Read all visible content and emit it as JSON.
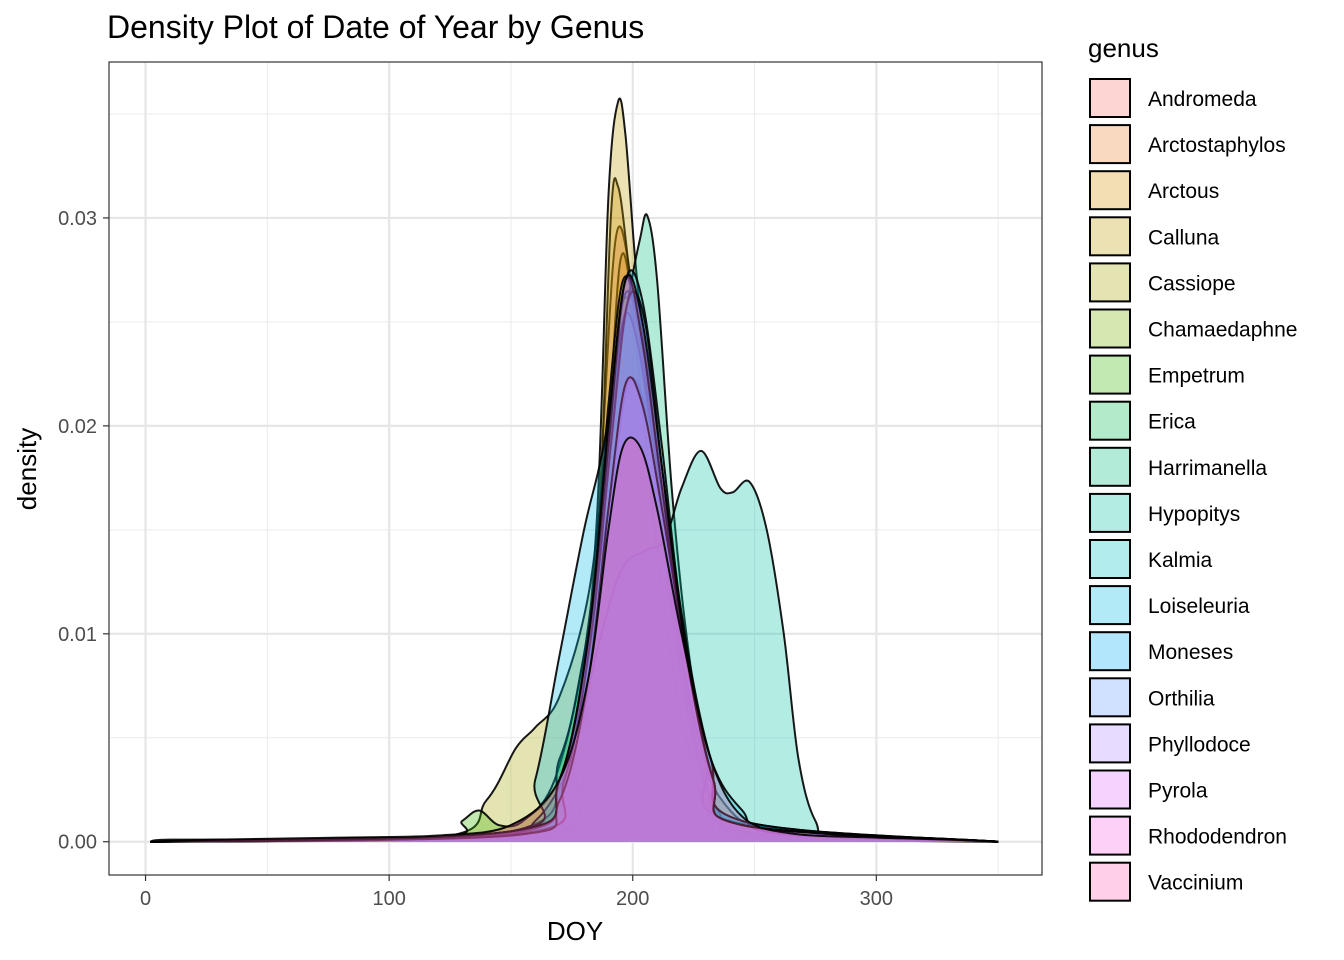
{
  "chart_data": {
    "type": "area",
    "subtype": "density",
    "title": "Density Plot of Date of Year by Genus",
    "xlabel": "DOY",
    "ylabel": "density",
    "xlim": [
      -15,
      368
    ],
    "ylim": [
      -0.0016,
      0.0375
    ],
    "x_ticks": [
      0,
      100,
      200,
      300
    ],
    "y_ticks": [
      0.0,
      0.01,
      0.02,
      0.03
    ],
    "x_tick_labels": [
      "0",
      "100",
      "200",
      "300"
    ],
    "y_tick_labels": [
      "0.00",
      "0.01",
      "0.02",
      "0.03"
    ],
    "grid": true,
    "legend_title": "genus",
    "legend_position": "right",
    "fill_opacity": 0.3,
    "series": [
      {
        "name": "Andromeda",
        "color": "#F8766D",
        "points": [
          [
            2,
            0
          ],
          [
            170,
            0.0003
          ],
          [
            180,
            0.003
          ],
          [
            188,
            0.02
          ],
          [
            193,
            0.029
          ],
          [
            198,
            0.028
          ],
          [
            203,
            0.022
          ],
          [
            210,
            0.014
          ],
          [
            220,
            0.006
          ],
          [
            232,
            0.001
          ],
          [
            245,
            0.0002
          ],
          [
            350,
            0
          ]
        ]
      },
      {
        "name": "Arctostaphylos",
        "color": "#EA8331",
        "points": [
          [
            2,
            0
          ],
          [
            10,
            0.0001
          ],
          [
            60,
            0.0001
          ],
          [
            90,
            0.0002
          ],
          [
            120,
            0.0002
          ],
          [
            150,
            0.0008
          ],
          [
            170,
            0.003
          ],
          [
            182,
            0.009
          ],
          [
            190,
            0.02
          ],
          [
            195,
            0.028
          ],
          [
            200,
            0.026
          ],
          [
            207,
            0.02
          ],
          [
            215,
            0.012
          ],
          [
            225,
            0.005
          ],
          [
            240,
            0.0015
          ],
          [
            260,
            0.0004
          ],
          [
            300,
            0.0002
          ],
          [
            350,
            0
          ]
        ]
      },
      {
        "name": "Arctous",
        "color": "#D89000",
        "points": [
          [
            2,
            0
          ],
          [
            160,
            0.0002
          ],
          [
            178,
            0.004
          ],
          [
            186,
            0.015
          ],
          [
            191,
            0.03
          ],
          [
            194,
            0.0315
          ],
          [
            198,
            0.028
          ],
          [
            203,
            0.022
          ],
          [
            210,
            0.014
          ],
          [
            220,
            0.006
          ],
          [
            235,
            0.0015
          ],
          [
            250,
            0.0003
          ],
          [
            350,
            0
          ]
        ]
      },
      {
        "name": "Calluna",
        "color": "#C09B00",
        "points": [
          [
            2,
            0
          ],
          [
            160,
            0.0003
          ],
          [
            175,
            0.003
          ],
          [
            185,
            0.015
          ],
          [
            190,
            0.031
          ],
          [
            194,
            0.0356
          ],
          [
            197,
            0.034
          ],
          [
            201,
            0.028
          ],
          [
            206,
            0.022
          ],
          [
            212,
            0.016
          ],
          [
            220,
            0.009
          ],
          [
            230,
            0.003
          ],
          [
            245,
            0.0005
          ],
          [
            350,
            0
          ]
        ]
      },
      {
        "name": "Cassiope",
        "color": "#A3A500",
        "points": [
          [
            2,
            0
          ],
          [
            120,
            0.0002
          ],
          [
            140,
            0.002
          ],
          [
            152,
            0.0045
          ],
          [
            160,
            0.0055
          ],
          [
            170,
            0.007
          ],
          [
            182,
            0.012
          ],
          [
            190,
            0.02
          ],
          [
            196,
            0.026
          ],
          [
            202,
            0.024
          ],
          [
            210,
            0.017
          ],
          [
            220,
            0.008
          ],
          [
            232,
            0.002
          ],
          [
            250,
            0.0004
          ],
          [
            350,
            0
          ]
        ]
      },
      {
        "name": "Chamaedaphne",
        "color": "#7CAE00",
        "points": [
          [
            2,
            0
          ],
          [
            150,
            0.0005
          ],
          [
            170,
            0.003
          ],
          [
            182,
            0.01
          ],
          [
            190,
            0.021
          ],
          [
            196,
            0.027
          ],
          [
            202,
            0.025
          ],
          [
            210,
            0.018
          ],
          [
            220,
            0.009
          ],
          [
            232,
            0.003
          ],
          [
            245,
            0.0008
          ],
          [
            350,
            0
          ]
        ]
      },
      {
        "name": "Empetrum",
        "color": "#39B600",
        "points": [
          [
            2,
            0
          ],
          [
            120,
            0.0002
          ],
          [
            130,
            0.001
          ],
          [
            137,
            0.0015
          ],
          [
            145,
            0.0008
          ],
          [
            155,
            0.001
          ],
          [
            168,
            0.003
          ],
          [
            180,
            0.009
          ],
          [
            190,
            0.019
          ],
          [
            196,
            0.026
          ],
          [
            202,
            0.025
          ],
          [
            210,
            0.018
          ],
          [
            220,
            0.009
          ],
          [
            232,
            0.003
          ],
          [
            245,
            0.0008
          ],
          [
            350,
            0
          ]
        ]
      },
      {
        "name": "Erica",
        "color": "#00BB4E",
        "points": [
          [
            2,
            0
          ],
          [
            150,
            0.0005
          ],
          [
            170,
            0.004
          ],
          [
            180,
            0.009
          ],
          [
            190,
            0.016
          ],
          [
            198,
            0.022
          ],
          [
            205,
            0.021
          ],
          [
            212,
            0.017
          ],
          [
            220,
            0.011
          ],
          [
            230,
            0.004
          ],
          [
            240,
            0.001
          ],
          [
            350,
            0
          ]
        ]
      },
      {
        "name": "Harrimanella",
        "color": "#00BF7D",
        "points": [
          [
            2,
            0
          ],
          [
            150,
            0.0004
          ],
          [
            170,
            0.003
          ],
          [
            180,
            0.008
          ],
          [
            188,
            0.016
          ],
          [
            193,
            0.022
          ],
          [
            198,
            0.026
          ],
          [
            203,
            0.029
          ],
          [
            206,
            0.0301
          ],
          [
            210,
            0.027
          ],
          [
            216,
            0.017
          ],
          [
            222,
            0.01
          ],
          [
            230,
            0.004
          ],
          [
            240,
            0.001
          ],
          [
            350,
            0
          ]
        ]
      },
      {
        "name": "Hypopitys",
        "color": "#00C1A3",
        "points": [
          [
            2,
            0
          ],
          [
            140,
            0.0002
          ],
          [
            160,
            0.001
          ],
          [
            175,
            0.004
          ],
          [
            185,
            0.009
          ],
          [
            195,
            0.013
          ],
          [
            205,
            0.014
          ],
          [
            213,
            0.0145
          ],
          [
            220,
            0.017
          ],
          [
            228,
            0.0188
          ],
          [
            236,
            0.017
          ],
          [
            241,
            0.0168
          ],
          [
            248,
            0.0173
          ],
          [
            255,
            0.015
          ],
          [
            262,
            0.01
          ],
          [
            268,
            0.004
          ],
          [
            275,
            0.001
          ],
          [
            285,
            0.0003
          ],
          [
            350,
            0
          ]
        ]
      },
      {
        "name": "Kalmia",
        "color": "#00BFC4",
        "points": [
          [
            2,
            0
          ],
          [
            150,
            0.0004
          ],
          [
            170,
            0.003
          ],
          [
            182,
            0.009
          ],
          [
            190,
            0.018
          ],
          [
            196,
            0.025
          ],
          [
            202,
            0.024
          ],
          [
            210,
            0.018
          ],
          [
            220,
            0.01
          ],
          [
            232,
            0.004
          ],
          [
            245,
            0.001
          ],
          [
            350,
            0
          ]
        ]
      },
      {
        "name": "Loiseleuria",
        "color": "#00B9E3",
        "points": [
          [
            2,
            0
          ],
          [
            150,
            0.0005
          ],
          [
            160,
            0.003
          ],
          [
            170,
            0.009
          ],
          [
            180,
            0.015
          ],
          [
            188,
            0.019
          ],
          [
            196,
            0.025
          ],
          [
            202,
            0.026
          ],
          [
            210,
            0.019
          ],
          [
            220,
            0.01
          ],
          [
            232,
            0.004
          ],
          [
            245,
            0.0015
          ],
          [
            260,
            0.0004
          ],
          [
            350,
            0
          ]
        ]
      },
      {
        "name": "Moneses",
        "color": "#00ADFA",
        "points": [
          [
            2,
            0
          ],
          [
            150,
            0.0004
          ],
          [
            170,
            0.003
          ],
          [
            182,
            0.01
          ],
          [
            190,
            0.02
          ],
          [
            197,
            0.027
          ],
          [
            204,
            0.026
          ],
          [
            212,
            0.019
          ],
          [
            220,
            0.011
          ],
          [
            232,
            0.004
          ],
          [
            245,
            0.001
          ],
          [
            350,
            0
          ]
        ]
      },
      {
        "name": "Orthilia",
        "color": "#619CFF",
        "points": [
          [
            2,
            0
          ],
          [
            155,
            0.0004
          ],
          [
            172,
            0.003
          ],
          [
            183,
            0.01
          ],
          [
            191,
            0.019
          ],
          [
            198,
            0.026
          ],
          [
            205,
            0.025
          ],
          [
            212,
            0.018
          ],
          [
            222,
            0.009
          ],
          [
            233,
            0.003
          ],
          [
            245,
            0.0008
          ],
          [
            350,
            0
          ]
        ]
      },
      {
        "name": "Phyllodoce",
        "color": "#AE87FF",
        "points": [
          [
            2,
            0
          ],
          [
            150,
            0.0005
          ],
          [
            170,
            0.003
          ],
          [
            182,
            0.01
          ],
          [
            190,
            0.019
          ],
          [
            197,
            0.027
          ],
          [
            204,
            0.024
          ],
          [
            212,
            0.017
          ],
          [
            222,
            0.009
          ],
          [
            233,
            0.003
          ],
          [
            245,
            0.0008
          ],
          [
            350,
            0
          ]
        ]
      },
      {
        "name": "Pyrola",
        "color": "#DB72FB",
        "points": [
          [
            2,
            0
          ],
          [
            150,
            0.0003
          ],
          [
            170,
            0.002
          ],
          [
            182,
            0.008
          ],
          [
            190,
            0.016
          ],
          [
            197,
            0.022
          ],
          [
            204,
            0.021
          ],
          [
            212,
            0.016
          ],
          [
            222,
            0.009
          ],
          [
            233,
            0.003
          ],
          [
            245,
            0.0008
          ],
          [
            350,
            0
          ]
        ]
      },
      {
        "name": "Rhododendron",
        "color": "#F564E3",
        "points": [
          [
            2,
            0
          ],
          [
            150,
            0.0005
          ],
          [
            170,
            0.003
          ],
          [
            182,
            0.01
          ],
          [
            190,
            0.02
          ],
          [
            197,
            0.027
          ],
          [
            204,
            0.025
          ],
          [
            212,
            0.018
          ],
          [
            222,
            0.009
          ],
          [
            233,
            0.003
          ],
          [
            245,
            0.0008
          ],
          [
            350,
            0
          ]
        ]
      },
      {
        "name": "Vaccinium",
        "color": "#FF64B0",
        "points": [
          [
            2,
            0
          ],
          [
            30,
            0.0001
          ],
          [
            80,
            0.0002
          ],
          [
            120,
            0.0003
          ],
          [
            150,
            0.0008
          ],
          [
            170,
            0.003
          ],
          [
            182,
            0.008
          ],
          [
            190,
            0.015
          ],
          [
            196,
            0.019
          ],
          [
            203,
            0.019
          ],
          [
            210,
            0.016
          ],
          [
            220,
            0.01
          ],
          [
            232,
            0.004
          ],
          [
            245,
            0.0012
          ],
          [
            265,
            0.0004
          ],
          [
            300,
            0.0002
          ],
          [
            330,
            0.0001
          ],
          [
            350,
            0
          ]
        ]
      }
    ]
  }
}
